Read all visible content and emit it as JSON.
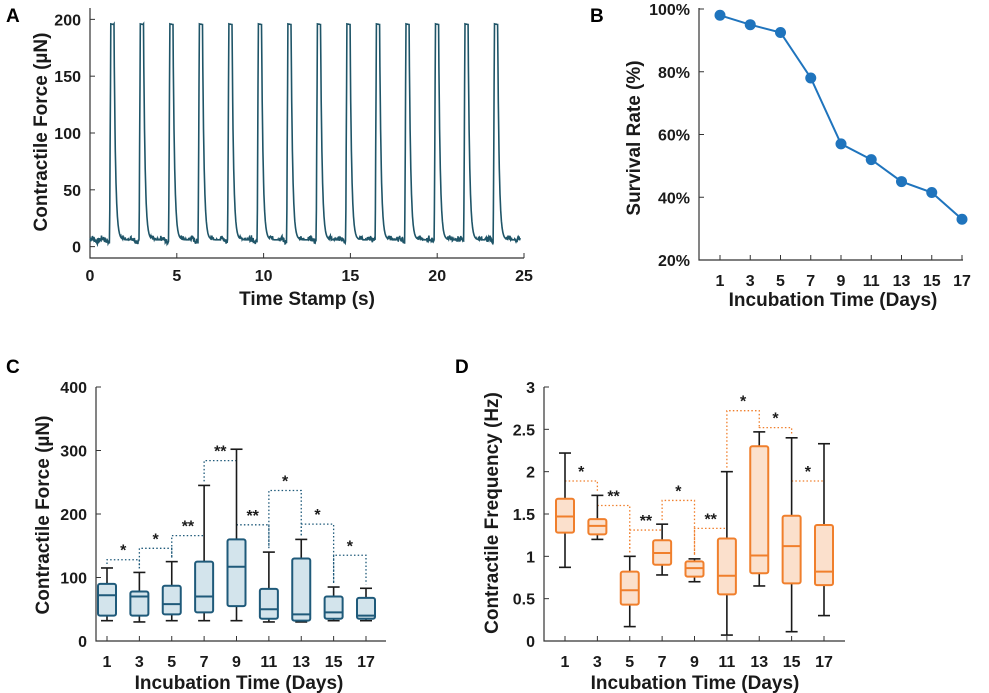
{
  "chart_data": [
    {
      "panel": "A",
      "type": "line",
      "xlabel": "Time Stamp (s)",
      "ylabel": "Contractile Force (µN)",
      "xlim": [
        0,
        25
      ],
      "ylim": [
        -10,
        210
      ],
      "xticks": [
        0,
        5,
        10,
        15,
        20,
        25
      ],
      "yticks": [
        0,
        50,
        100,
        150,
        200
      ],
      "series": [
        {
          "name": "force",
          "color": "#1f5568",
          "baseline": 6,
          "peak": 196,
          "peak_times": [
            1.2,
            2.9,
            4.6,
            6.3,
            8.0,
            9.7,
            11.4,
            13.1,
            14.8,
            16.5,
            18.2,
            19.9,
            21.6,
            23.3
          ]
        }
      ]
    },
    {
      "panel": "B",
      "type": "line",
      "xlabel": "Incubation Time (Days)",
      "ylabel": "Survival Rate (%)",
      "categories": [
        "1",
        "3",
        "5",
        "7",
        "9",
        "11",
        "13",
        "15",
        "17"
      ],
      "values": [
        98,
        95,
        92.5,
        78,
        57,
        52,
        45,
        41.5,
        33
      ],
      "ylim": [
        20,
        100
      ],
      "yticks": [
        "20%",
        "40%",
        "60%",
        "80%",
        "100%"
      ],
      "color": "#1f74bd"
    },
    {
      "panel": "C",
      "type": "box",
      "xlabel": "Incubation Time (Days)",
      "ylabel": "Contractile Force (µN)",
      "categories": [
        "1",
        "3",
        "5",
        "7",
        "9",
        "11",
        "13",
        "15",
        "17"
      ],
      "ylim": [
        0,
        400
      ],
      "yticks": [
        "0",
        "100",
        "200",
        "300",
        "400"
      ],
      "color": "#1f5a7a",
      "fill": "#d3e4ec",
      "boxes": [
        {
          "min": 32,
          "q1": 40,
          "median": 72,
          "q3": 90,
          "max": 115
        },
        {
          "min": 30,
          "q1": 40,
          "median": 70,
          "q3": 78,
          "max": 108
        },
        {
          "min": 32,
          "q1": 42,
          "median": 58,
          "q3": 87,
          "max": 125
        },
        {
          "min": 32,
          "q1": 45,
          "median": 70,
          "q3": 125,
          "max": 245
        },
        {
          "min": 32,
          "q1": 55,
          "median": 117,
          "q3": 160,
          "max": 302
        },
        {
          "min": 30,
          "q1": 35,
          "median": 50,
          "q3": 82,
          "max": 140
        },
        {
          "min": 30,
          "q1": 32,
          "median": 42,
          "q3": 130,
          "max": 160
        },
        {
          "min": 32,
          "q1": 35,
          "median": 45,
          "q3": 70,
          "max": 85
        },
        {
          "min": 32,
          "q1": 35,
          "median": 40,
          "q3": 68,
          "max": 83
        }
      ],
      "significance": [
        {
          "from": 0,
          "to": 1,
          "y": 128,
          "label": "*"
        },
        {
          "from": 1,
          "to": 2,
          "y": 146,
          "label": "*"
        },
        {
          "from": 2,
          "to": 3,
          "y": 166,
          "label": "**"
        },
        {
          "from": 3,
          "to": 4,
          "y": 284,
          "label": "**"
        },
        {
          "from": 4,
          "to": 5,
          "y": 183,
          "label": "**"
        },
        {
          "from": 5,
          "to": 6,
          "y": 237,
          "label": "*"
        },
        {
          "from": 6,
          "to": 7,
          "y": 184,
          "label": "*"
        },
        {
          "from": 7,
          "to": 8,
          "y": 135,
          "label": "*"
        }
      ]
    },
    {
      "panel": "D",
      "type": "box",
      "xlabel": "Incubation Time (Days)",
      "ylabel": "Contractile Frequency (Hz)",
      "categories": [
        "1",
        "3",
        "5",
        "7",
        "9",
        "11",
        "13",
        "15",
        "17"
      ],
      "ylim": [
        0,
        3
      ],
      "yticks": [
        "0",
        "0.5",
        "1",
        "1.5",
        "2",
        "2.5",
        "3"
      ],
      "color": "#f07f2c",
      "fill": "#fbe0cc",
      "boxes": [
        {
          "min": 0.87,
          "q1": 1.28,
          "median": 1.47,
          "q3": 1.68,
          "max": 2.22
        },
        {
          "min": 1.2,
          "q1": 1.26,
          "median": 1.36,
          "q3": 1.44,
          "max": 1.72
        },
        {
          "min": 0.17,
          "q1": 0.43,
          "median": 0.6,
          "q3": 0.82,
          "max": 1.0
        },
        {
          "min": 0.78,
          "q1": 0.9,
          "median": 1.04,
          "q3": 1.19,
          "max": 1.38
        },
        {
          "min": 0.7,
          "q1": 0.76,
          "median": 0.86,
          "q3": 0.94,
          "max": 0.97
        },
        {
          "min": 0.07,
          "q1": 0.55,
          "median": 0.77,
          "q3": 1.21,
          "max": 2.0
        },
        {
          "min": 0.65,
          "q1": 0.8,
          "median": 1.01,
          "q3": 2.3,
          "max": 2.47
        },
        {
          "min": 0.11,
          "q1": 0.68,
          "median": 1.12,
          "q3": 1.48,
          "max": 2.4
        },
        {
          "min": 0.3,
          "q1": 0.66,
          "median": 0.82,
          "q3": 1.37,
          "max": 2.33
        }
      ],
      "significance": [
        {
          "from": 0,
          "to": 1,
          "y": 1.89,
          "label": "*"
        },
        {
          "from": 1,
          "to": 2,
          "y": 1.6,
          "label": "**"
        },
        {
          "from": 2,
          "to": 3,
          "y": 1.31,
          "label": "**"
        },
        {
          "from": 3,
          "to": 4,
          "y": 1.66,
          "label": "*"
        },
        {
          "from": 4,
          "to": 5,
          "y": 1.33,
          "label": "**"
        },
        {
          "from": 5,
          "to": 6,
          "y": 2.72,
          "label": "*"
        },
        {
          "from": 6,
          "to": 7,
          "y": 2.52,
          "label": "*"
        },
        {
          "from": 7,
          "to": 8,
          "y": 1.89,
          "label": "*"
        }
      ]
    }
  ]
}
